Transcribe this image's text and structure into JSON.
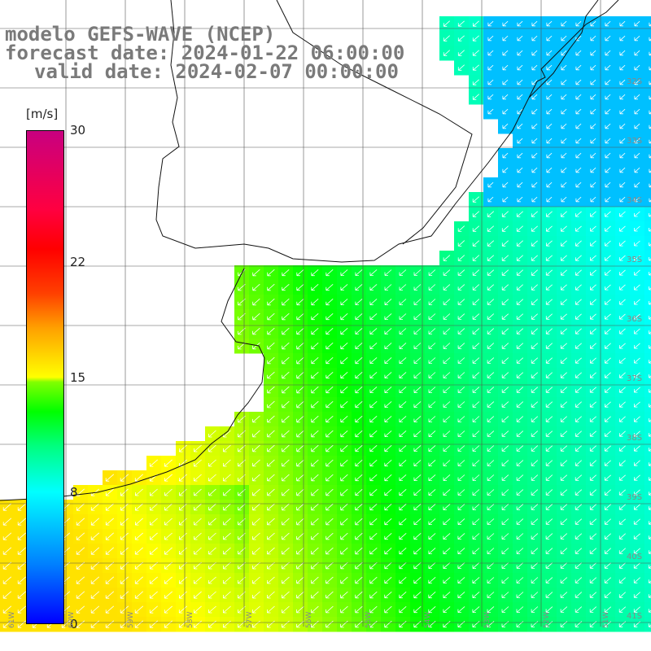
{
  "header": {
    "line1": "modelo GEFS-WAVE (NCEP)",
    "line2": "forecast date: 2024-01-22 06:00:00",
    "line3": "valid date: 2024-02-07 00:00:00"
  },
  "colorbar": {
    "unit": "[m/s]",
    "ticks": [
      "30",
      "22",
      "15",
      "8",
      "0"
    ],
    "tick_values": [
      30,
      22,
      15,
      8,
      0
    ],
    "max": 30,
    "colors": [
      "#0000ff",
      "#00ffff",
      "#00ff00",
      "#ffff00",
      "#ff0000",
      "#c80080"
    ]
  },
  "axes": {
    "lon_labels": [
      "61W",
      "60W",
      "59W",
      "58W",
      "57W",
      "56W",
      "55W",
      "54W",
      "53W",
      "52W",
      "51W"
    ],
    "lat_labels": [
      "32S",
      "33S",
      "34S",
      "35S",
      "36S",
      "37S",
      "38S",
      "39S",
      "40S",
      "41S"
    ]
  },
  "map": {
    "region": "Rio de la Plata / Uruguay / southern Brazil coast",
    "field": "wind speed",
    "arrow_direction": "southwest",
    "grid": true
  }
}
